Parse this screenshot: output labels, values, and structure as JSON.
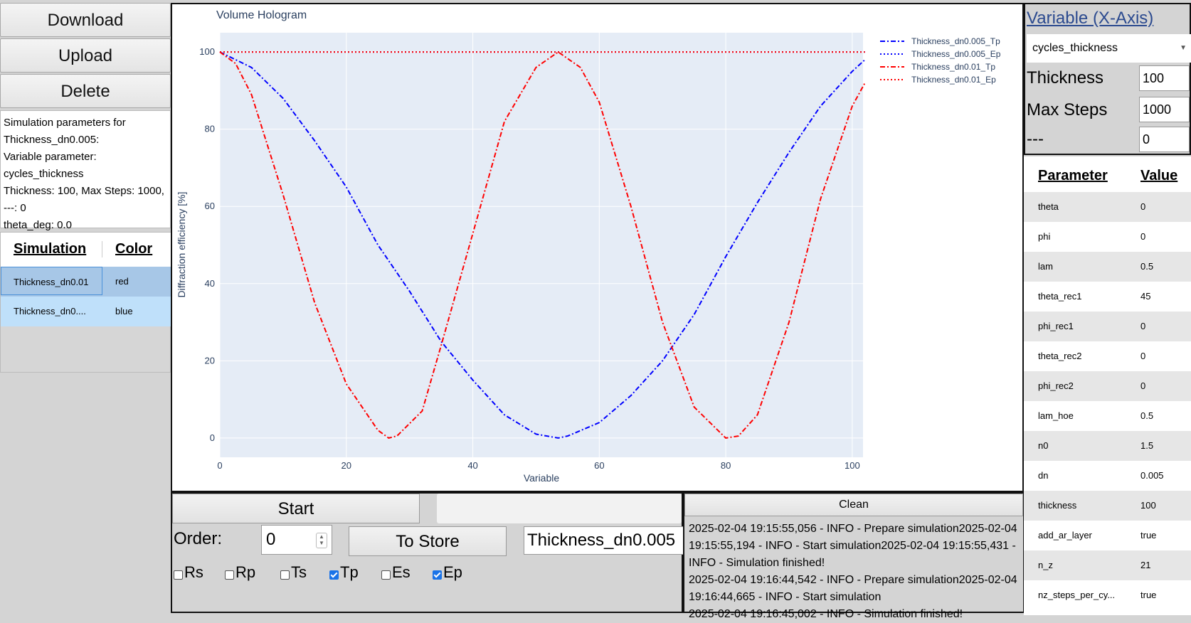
{
  "left_panel": {
    "buttons": [
      "Download",
      "Upload",
      "Delete"
    ],
    "info_lines": [
      "Simulation parameters for",
      "Thickness_dn0.005:",
      "Variable parameter:",
      "cycles_thickness",
      "Thickness: 100, Max Steps: 1000,",
      "---: 0",
      "theta_deg: 0.0"
    ],
    "sim_table": {
      "headers": [
        "Simulation",
        "Color"
      ],
      "rows": [
        {
          "name": "Thickness_dn0.01",
          "color": "red"
        },
        {
          "name": "Thickness_dn0....",
          "color": "blue"
        }
      ]
    }
  },
  "chart_data": {
    "type": "line",
    "title": "Volume Hologram",
    "xlabel": "Variable",
    "ylabel": "Diffraction efficiency [%]",
    "xlim": [
      0,
      101.7
    ],
    "ylim": [
      -5,
      105
    ],
    "xticks": [
      0,
      20,
      40,
      60,
      80,
      100
    ],
    "yticks": [
      0,
      20,
      40,
      60,
      80,
      100
    ],
    "grid": true,
    "legend_position": "top-right",
    "series": [
      {
        "name": "Thickness_dn0.005_Tp",
        "color": "#0000ff",
        "dash": "dashdot",
        "x": [
          0,
          5,
          10,
          15,
          20,
          25,
          30,
          35,
          40,
          45,
          50,
          53.5,
          55,
          60,
          65,
          70,
          75,
          80,
          85,
          90,
          95,
          100,
          102
        ],
        "y": [
          100,
          96,
          88,
          77,
          65,
          50,
          38,
          25,
          15,
          6,
          1,
          0,
          0.5,
          4,
          11,
          20,
          32,
          47,
          61,
          74,
          86,
          95,
          98
        ]
      },
      {
        "name": "Thickness_dn0.005_Ep",
        "color": "#0000ff",
        "dash": "dot",
        "x": [
          0,
          102
        ],
        "y": [
          100,
          100
        ]
      },
      {
        "name": "Thickness_dn0.01_Tp",
        "color": "#ff0000",
        "dash": "dashdot",
        "x": [
          0,
          2.5,
          5,
          10,
          15,
          20,
          25,
          26.7,
          28,
          32,
          35,
          40,
          45,
          50,
          53.5,
          57,
          60,
          65,
          70,
          75,
          80,
          82,
          85,
          90,
          95,
          100,
          102
        ],
        "y": [
          100,
          97,
          89,
          63,
          35,
          14,
          2,
          0,
          0.5,
          7,
          24,
          53,
          82,
          96,
          100,
          96,
          87,
          60,
          30,
          8,
          0,
          0.5,
          6,
          30,
          62,
          86,
          92
        ]
      },
      {
        "name": "Thickness_dn0.01_Ep",
        "color": "#ff0000",
        "dash": "dot",
        "x": [
          0,
          102
        ],
        "y": [
          100,
          100
        ]
      }
    ]
  },
  "controls": {
    "start_label": "Start",
    "order_label": "Order:",
    "order_value": "0",
    "to_store_label": "To Store",
    "name_value": "Thickness_dn0.005",
    "checkboxes": [
      {
        "label": "Rs",
        "checked": false
      },
      {
        "label": "Rp",
        "checked": false
      },
      {
        "label": "Ts",
        "checked": false
      },
      {
        "label": "Tp",
        "checked": true
      },
      {
        "label": "Es",
        "checked": false
      },
      {
        "label": "Ep",
        "checked": true
      }
    ]
  },
  "log": {
    "clean_label": "Clean",
    "text": "2025-02-04 19:15:55,056 - INFO - Prepare simulation2025-02-04 19:15:55,194 - INFO - Start simulation2025-02-04 19:15:55,431 - INFO - Simulation finished!\n2025-02-04 19:16:44,542 - INFO - Prepare simulation2025-02-04 19:16:44,665 - INFO - Start simulation\n2025-02-04 19:16:45,002 - INFO - Simulation finished!"
  },
  "right_panel": {
    "title": "Variable (X-Axis)",
    "select_value": "cycles_thickness",
    "fields": [
      {
        "label": "Thickness",
        "value": "100"
      },
      {
        "label": "Max Steps",
        "value": "1000"
      },
      {
        "label": "---",
        "value": "0"
      }
    ],
    "param_headers": [
      "Parameter",
      "Value"
    ],
    "params": [
      {
        "name": "theta",
        "value": "0"
      },
      {
        "name": "phi",
        "value": "0"
      },
      {
        "name": "lam",
        "value": "0.5"
      },
      {
        "name": "theta_rec1",
        "value": "45"
      },
      {
        "name": "phi_rec1",
        "value": "0"
      },
      {
        "name": "theta_rec2",
        "value": "0"
      },
      {
        "name": "phi_rec2",
        "value": "0"
      },
      {
        "name": "lam_hoe",
        "value": "0.5"
      },
      {
        "name": "n0",
        "value": "1.5"
      },
      {
        "name": "dn",
        "value": "0.005"
      },
      {
        "name": "thickness",
        "value": "100"
      },
      {
        "name": "add_ar_layer",
        "value": "true"
      },
      {
        "name": "n_z",
        "value": "21"
      },
      {
        "name": "nz_steps_per_cy...",
        "value": "true"
      }
    ]
  }
}
